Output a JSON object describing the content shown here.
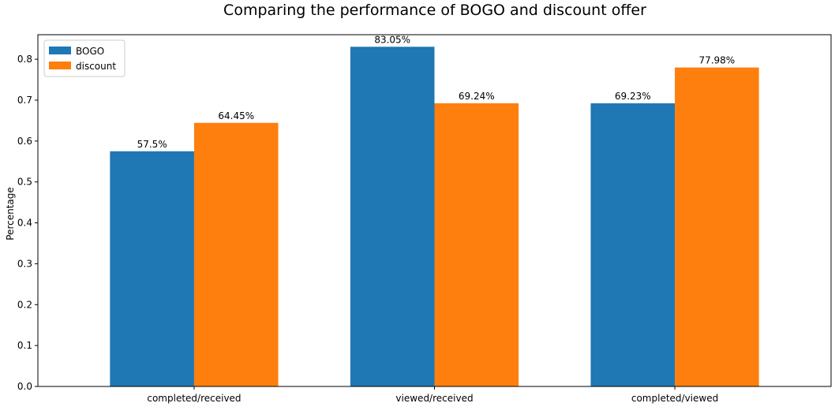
{
  "chart_data": {
    "type": "bar",
    "title": "Comparing the performance of BOGO and discount offer",
    "xlabel": "",
    "ylabel": "Percentage",
    "categories": [
      "completed/received",
      "viewed/received",
      "completed/viewed"
    ],
    "series": [
      {
        "name": "BOGO",
        "color": "#1f77b4",
        "values": [
          0.575,
          0.8305,
          0.6923
        ],
        "labels": [
          "57.5%",
          "83.05%",
          "69.23%"
        ]
      },
      {
        "name": "discount",
        "color": "#ff7f0e",
        "values": [
          0.6445,
          0.6924,
          0.7798
        ],
        "labels": [
          "64.45%",
          "69.24%",
          "77.98%"
        ]
      }
    ],
    "ylim": [
      0,
      0.86
    ],
    "yticks": [
      0.0,
      0.1,
      0.2,
      0.3,
      0.4,
      0.5,
      0.6,
      0.7,
      0.8
    ],
    "ytick_labels": [
      "0.0",
      "0.1",
      "0.2",
      "0.3",
      "0.4",
      "0.5",
      "0.6",
      "0.7",
      "0.8"
    ],
    "grid": false,
    "legend_position": "upper-left"
  }
}
